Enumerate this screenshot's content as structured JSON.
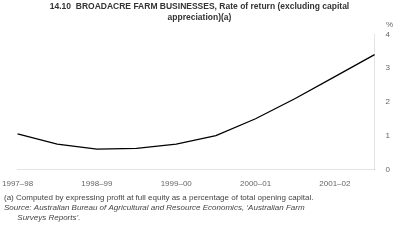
{
  "chart_data": {
    "type": "line",
    "title": [
      "14.10  BROADACRE FARM BUSINESSES, Rate of return (excluding capital",
      "appreciation)(a)"
    ],
    "y_label": "%",
    "categories": [
      "1997–98",
      null,
      "1998–99",
      null,
      "1999–00",
      null,
      "2000–01",
      null,
      "2001–02",
      null
    ],
    "values": [
      1.05,
      0.75,
      0.6,
      0.62,
      0.75,
      1.0,
      1.5,
      2.1,
      2.75,
      3.4
    ],
    "color": "#000000",
    "ylim": [
      0,
      4
    ],
    "yticks": [
      0,
      1,
      2,
      3,
      4
    ],
    "grid": false,
    "footnotes": [
      "(a) Computed by expressing profit at full equity as a percentage of total opening capital.",
      "Source: Australian Bureau of Agricultural and Resource Economics, ‘Australian Farm",
      "      Surveys Reports’."
    ]
  }
}
